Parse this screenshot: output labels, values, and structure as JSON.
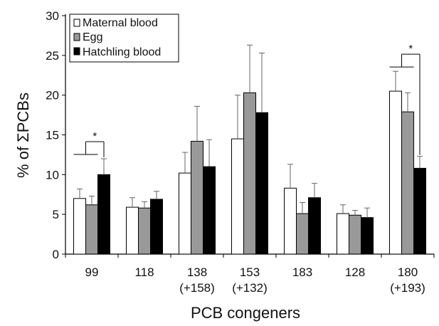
{
  "chart_data": {
    "type": "bar",
    "title": "",
    "xlabel": "PCB congeners",
    "ylabel": "% of ΣPCBs",
    "ylim": [
      0,
      30
    ],
    "yticks": [
      0,
      5,
      10,
      15,
      20,
      25,
      30
    ],
    "grid": false,
    "legend_position": "top-left",
    "categories": [
      {
        "label": "99",
        "sublabel": ""
      },
      {
        "label": "118",
        "sublabel": ""
      },
      {
        "label": "138",
        "sublabel": "(+158)"
      },
      {
        "label": "153",
        "sublabel": "(+132)"
      },
      {
        "label": "183",
        "sublabel": ""
      },
      {
        "label": "128",
        "sublabel": ""
      },
      {
        "label": "180",
        "sublabel": "(+193)"
      }
    ],
    "series": [
      {
        "name": "Maternal blood",
        "color": "#ffffff",
        "values": [
          7.0,
          5.9,
          10.2,
          14.5,
          8.3,
          5.1,
          20.5
        ],
        "errors": [
          1.2,
          1.2,
          2.6,
          5.5,
          3.0,
          1.1,
          2.5
        ]
      },
      {
        "name": "Egg",
        "color": "#999999",
        "values": [
          6.2,
          5.8,
          14.2,
          20.3,
          5.1,
          4.9,
          17.9
        ],
        "errors": [
          1.1,
          0.8,
          4.4,
          6.0,
          1.4,
          0.6,
          2.4
        ]
      },
      {
        "name": "Hatchling blood",
        "color": "#000000",
        "values": [
          10.0,
          6.9,
          11.0,
          17.8,
          7.1,
          4.6,
          10.8
        ],
        "errors": [
          2.0,
          1.0,
          3.4,
          7.5,
          1.8,
          1.2,
          1.5
        ]
      }
    ],
    "annotations": [
      {
        "category_index": 0,
        "text": "*"
      },
      {
        "category_index": 6,
        "text": "*"
      }
    ]
  }
}
